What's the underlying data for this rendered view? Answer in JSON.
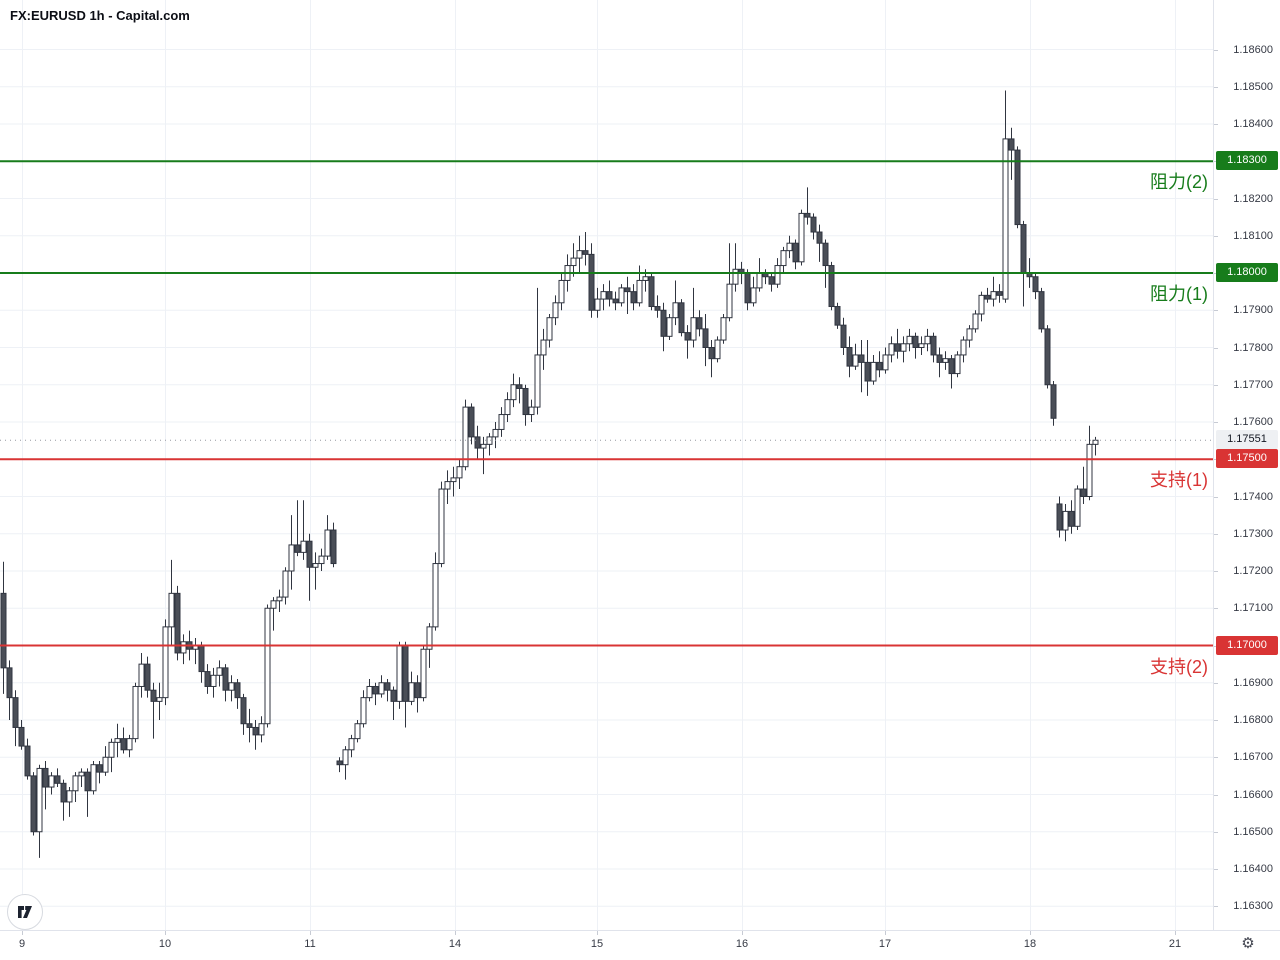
{
  "header": {
    "title": "FX:EURUSD 1h - Capital.com"
  },
  "icons": {
    "settings": "⚙",
    "watermark": "tradingview-logo"
  },
  "colors": {
    "background": "#ffffff",
    "grid": "#eef1f6",
    "axis_text": "#363a45",
    "candle_border": "#303540",
    "candle_up_fill": "#ffffff",
    "candle_down_fill": "#4a4e57",
    "resistance": "#177c1b",
    "support": "#d93434",
    "last_price_line": "#9598a1",
    "last_badge_bg": "#eef0f3"
  },
  "y_axis": {
    "labels": [
      "1.18600",
      "1.18500",
      "1.18400",
      "1.18300",
      "1.18200",
      "1.18100",
      "1.18000",
      "1.17900",
      "1.17800",
      "1.17700",
      "1.17600",
      "1.17500",
      "1.17400",
      "1.17300",
      "1.17200",
      "1.17100",
      "1.17000",
      "1.16900",
      "1.16800",
      "1.16700",
      "1.16600",
      "1.16500",
      "1.16400",
      "1.16300"
    ]
  },
  "x_axis": {
    "ticks": [
      {
        "text": "9",
        "x": 22
      },
      {
        "text": "10",
        "x": 165
      },
      {
        "text": "11",
        "x": 310
      },
      {
        "text": "14",
        "x": 455
      },
      {
        "text": "15",
        "x": 597
      },
      {
        "text": "16",
        "x": 742
      },
      {
        "text": "17",
        "x": 885
      },
      {
        "text": "18",
        "x": 1030
      },
      {
        "text": "21",
        "x": 1175
      }
    ]
  },
  "levels": [
    {
      "id": "resistance-2",
      "text": "阻力(2)",
      "badge": "1.18300",
      "price": 1.183,
      "color": "#177c1b"
    },
    {
      "id": "resistance-1",
      "text": "阻力(1)",
      "badge": "1.18000",
      "price": 1.18,
      "color": "#177c1b"
    },
    {
      "id": "support-1",
      "text": "支持(1)",
      "badge": "1.17500",
      "price": 1.175,
      "color": "#d93434"
    },
    {
      "id": "support-2",
      "text": "支持(2)",
      "badge": "1.17000",
      "price": 1.17,
      "color": "#d93434"
    }
  ],
  "last_price": {
    "badge": "1.17551",
    "price": 1.17551
  },
  "chart_data": {
    "type": "candlestick",
    "symbol": "FX:EURUSD",
    "interval": "1h",
    "source": "Capital.com",
    "title": "FX:EURUSD 1h - Capital.com",
    "y_range": [
      1.163,
      1.186
    ],
    "grid": true,
    "day_labels": [
      "9",
      "10",
      "11",
      "14",
      "15",
      "16",
      "17",
      "18",
      "21"
    ],
    "resistance_levels": [
      1.183,
      1.18
    ],
    "support_levels": [
      1.175,
      1.17
    ],
    "last_close": 1.17551,
    "bars": [
      [
        1.1714,
        1.17225,
        1.1687,
        1.1694
      ],
      [
        1.1694,
        1.1696,
        1.168,
        1.1686
      ],
      [
        1.1686,
        1.1688,
        1.1673,
        1.1678
      ],
      [
        1.1678,
        1.168,
        1.1672,
        1.1673
      ],
      [
        1.1673,
        1.1675,
        1.1664,
        1.1665
      ],
      [
        1.1665,
        1.1666,
        1.1649,
        1.165
      ],
      [
        1.165,
        1.1668,
        1.1643,
        1.1667
      ],
      [
        1.1667,
        1.1669,
        1.1656,
        1.1662
      ],
      [
        1.1662,
        1.1666,
        1.166,
        1.1665
      ],
      [
        1.1665,
        1.1667,
        1.1662,
        1.1663
      ],
      [
        1.1663,
        1.1664,
        1.1653,
        1.1658
      ],
      [
        1.1658,
        1.1662,
        1.1654,
        1.1661
      ],
      [
        1.1661,
        1.1666,
        1.1658,
        1.1665
      ],
      [
        1.1665,
        1.1667,
        1.1662,
        1.1666
      ],
      [
        1.1666,
        1.1667,
        1.1654,
        1.1661
      ],
      [
        1.1661,
        1.1669,
        1.166,
        1.1668
      ],
      [
        1.1668,
        1.1669,
        1.1663,
        1.1666
      ],
      [
        1.1666,
        1.1673,
        1.1665,
        1.167
      ],
      [
        1.167,
        1.1675,
        1.1666,
        1.1674
      ],
      [
        1.1674,
        1.1679,
        1.167,
        1.1675
      ],
      [
        1.1675,
        1.1678,
        1.1671,
        1.1672
      ],
      [
        1.1672,
        1.1676,
        1.167,
        1.1675
      ],
      [
        1.1675,
        1.169,
        1.1674,
        1.1689
      ],
      [
        1.1689,
        1.1698,
        1.1686,
        1.1695
      ],
      [
        1.1695,
        1.1697,
        1.1686,
        1.1688
      ],
      [
        1.1688,
        1.169,
        1.1675,
        1.1685
      ],
      [
        1.1685,
        1.169,
        1.168,
        1.1686
      ],
      [
        1.1686,
        1.1707,
        1.1684,
        1.1705
      ],
      [
        1.1705,
        1.1723,
        1.17,
        1.1714
      ],
      [
        1.1714,
        1.1716,
        1.1696,
        1.1698
      ],
      [
        1.1698,
        1.1703,
        1.1695,
        1.1701
      ],
      [
        1.1701,
        1.1704,
        1.1696,
        1.1699
      ],
      [
        1.1699,
        1.1702,
        1.1695,
        1.17
      ],
      [
        1.17,
        1.1701,
        1.169,
        1.1693
      ],
      [
        1.1693,
        1.1695,
        1.1687,
        1.1689
      ],
      [
        1.1689,
        1.1694,
        1.1686,
        1.1692
      ],
      [
        1.1692,
        1.1696,
        1.1689,
        1.1694
      ],
      [
        1.1694,
        1.1695,
        1.1685,
        1.1688
      ],
      [
        1.1688,
        1.1692,
        1.1685,
        1.169
      ],
      [
        1.169,
        1.1691,
        1.1683,
        1.1686
      ],
      [
        1.1686,
        1.1687,
        1.1676,
        1.1679
      ],
      [
        1.1679,
        1.1683,
        1.1674,
        1.1678
      ],
      [
        1.1678,
        1.168,
        1.1672,
        1.1676
      ],
      [
        1.1676,
        1.1681,
        1.1674,
        1.1679
      ],
      [
        1.1679,
        1.1711,
        1.1678,
        1.171
      ],
      [
        1.171,
        1.1713,
        1.1704,
        1.1712
      ],
      [
        1.1712,
        1.1715,
        1.1709,
        1.1713
      ],
      [
        1.1713,
        1.1721,
        1.1711,
        1.172
      ],
      [
        1.172,
        1.1735,
        1.1715,
        1.1727
      ],
      [
        1.1727,
        1.1739,
        1.1724,
        1.1725
      ],
      [
        1.1725,
        1.1739,
        1.1723,
        1.1728
      ],
      [
        1.1728,
        1.173,
        1.1712,
        1.1721
      ],
      [
        1.1721,
        1.1725,
        1.1715,
        1.1722
      ],
      [
        1.1722,
        1.1726,
        1.172,
        1.1724
      ],
      [
        1.1724,
        1.1735,
        1.1723,
        1.1731
      ],
      [
        1.1731,
        1.1733,
        1.1721,
        1.1722
      ],
      [
        1.1669,
        1.167,
        1.1666,
        1.1668
      ],
      [
        1.1668,
        1.1673,
        1.1664,
        1.1672
      ],
      [
        1.1672,
        1.1676,
        1.167,
        1.1675
      ],
      [
        1.1675,
        1.168,
        1.1674,
        1.1679
      ],
      [
        1.1679,
        1.1688,
        1.1678,
        1.1686
      ],
      [
        1.1686,
        1.1691,
        1.1685,
        1.1689
      ],
      [
        1.1689,
        1.169,
        1.1684,
        1.1687
      ],
      [
        1.1687,
        1.1692,
        1.1686,
        1.169
      ],
      [
        1.169,
        1.1691,
        1.1685,
        1.1688
      ],
      [
        1.1688,
        1.1689,
        1.168,
        1.1685
      ],
      [
        1.1685,
        1.1701,
        1.1683,
        1.17
      ],
      [
        1.17,
        1.1701,
        1.1678,
        1.1685
      ],
      [
        1.1685,
        1.1693,
        1.1684,
        1.169
      ],
      [
        1.169,
        1.1692,
        1.1682,
        1.1686
      ],
      [
        1.1686,
        1.17,
        1.1685,
        1.1699
      ],
      [
        1.1699,
        1.1706,
        1.1694,
        1.1705
      ],
      [
        1.1705,
        1.1725,
        1.1704,
        1.1722
      ],
      [
        1.1722,
        1.1744,
        1.1721,
        1.1742
      ],
      [
        1.1742,
        1.1747,
        1.1738,
        1.1744
      ],
      [
        1.1744,
        1.1748,
        1.174,
        1.1745
      ],
      [
        1.1745,
        1.175,
        1.1742,
        1.1748
      ],
      [
        1.1748,
        1.1766,
        1.1747,
        1.1764
      ],
      [
        1.1764,
        1.1765,
        1.1754,
        1.1756
      ],
      [
        1.1756,
        1.1759,
        1.175,
        1.1753
      ],
      [
        1.1753,
        1.1756,
        1.1746,
        1.1754
      ],
      [
        1.1754,
        1.1757,
        1.1751,
        1.1756
      ],
      [
        1.1756,
        1.176,
        1.1753,
        1.1758
      ],
      [
        1.1758,
        1.1764,
        1.1756,
        1.1762
      ],
      [
        1.1762,
        1.1768,
        1.176,
        1.1766
      ],
      [
        1.1766,
        1.1773,
        1.1764,
        1.177
      ],
      [
        1.177,
        1.1772,
        1.1765,
        1.1769
      ],
      [
        1.1769,
        1.177,
        1.1759,
        1.1762
      ],
      [
        1.1762,
        1.1766,
        1.176,
        1.1764
      ],
      [
        1.1764,
        1.1796,
        1.1762,
        1.1778
      ],
      [
        1.1778,
        1.1785,
        1.1774,
        1.1782
      ],
      [
        1.1782,
        1.1789,
        1.178,
        1.1788
      ],
      [
        1.1788,
        1.1794,
        1.1786,
        1.1792
      ],
      [
        1.1792,
        1.18,
        1.179,
        1.1798
      ],
      [
        1.1798,
        1.1805,
        1.1795,
        1.1802
      ],
      [
        1.1802,
        1.1808,
        1.1799,
        1.1804
      ],
      [
        1.1804,
        1.181,
        1.18,
        1.1806
      ],
      [
        1.1806,
        1.1811,
        1.1802,
        1.1805
      ],
      [
        1.1805,
        1.1808,
        1.1788,
        1.179
      ],
      [
        1.179,
        1.1796,
        1.1788,
        1.1793
      ],
      [
        1.1793,
        1.1797,
        1.179,
        1.1795
      ],
      [
        1.1795,
        1.1798,
        1.1791,
        1.1793
      ],
      [
        1.1793,
        1.1795,
        1.179,
        1.1792
      ],
      [
        1.1792,
        1.1797,
        1.1791,
        1.1796
      ],
      [
        1.1796,
        1.1799,
        1.1789,
        1.1795
      ],
      [
        1.1795,
        1.1797,
        1.179,
        1.1792
      ],
      [
        1.1792,
        1.1802,
        1.1791,
        1.1798
      ],
      [
        1.1798,
        1.1801,
        1.1795,
        1.1799
      ],
      [
        1.1799,
        1.18,
        1.179,
        1.1791
      ],
      [
        1.1791,
        1.1794,
        1.1788,
        1.179
      ],
      [
        1.179,
        1.1792,
        1.1779,
        1.1783
      ],
      [
        1.1783,
        1.1789,
        1.1782,
        1.1788
      ],
      [
        1.1788,
        1.1798,
        1.1786,
        1.1792
      ],
      [
        1.1792,
        1.1793,
        1.1783,
        1.1784
      ],
      [
        1.1784,
        1.1786,
        1.1777,
        1.1782
      ],
      [
        1.1782,
        1.1796,
        1.178,
        1.1788
      ],
      [
        1.1788,
        1.179,
        1.1783,
        1.1785
      ],
      [
        1.1785,
        1.1789,
        1.1775,
        1.178
      ],
      [
        1.178,
        1.1782,
        1.1772,
        1.1777
      ],
      [
        1.1777,
        1.1783,
        1.1776,
        1.1782
      ],
      [
        1.1782,
        1.1789,
        1.1781,
        1.1788
      ],
      [
        1.1788,
        1.1808,
        1.1787,
        1.1797
      ],
      [
        1.1797,
        1.1808,
        1.1795,
        1.1801
      ],
      [
        1.1801,
        1.1803,
        1.1797,
        1.18
      ],
      [
        1.18,
        1.1801,
        1.179,
        1.1792
      ],
      [
        1.1792,
        1.1799,
        1.1791,
        1.1796
      ],
      [
        1.1796,
        1.1804,
        1.1795,
        1.18
      ],
      [
        1.18,
        1.1801,
        1.1797,
        1.1799
      ],
      [
        1.1799,
        1.18,
        1.1795,
        1.1797
      ],
      [
        1.1797,
        1.1804,
        1.1796,
        1.1802
      ],
      [
        1.1802,
        1.1807,
        1.18,
        1.1806
      ],
      [
        1.1806,
        1.181,
        1.1804,
        1.1808
      ],
      [
        1.1808,
        1.1809,
        1.1801,
        1.1803
      ],
      [
        1.1803,
        1.1817,
        1.1802,
        1.1816
      ],
      [
        1.1816,
        1.1823,
        1.1813,
        1.1815
      ],
      [
        1.1815,
        1.1816,
        1.1809,
        1.1811
      ],
      [
        1.1811,
        1.1813,
        1.1803,
        1.1808
      ],
      [
        1.1808,
        1.1809,
        1.1796,
        1.1802
      ],
      [
        1.1802,
        1.1803,
        1.179,
        1.1791
      ],
      [
        1.1791,
        1.1792,
        1.1785,
        1.1786
      ],
      [
        1.1786,
        1.1788,
        1.1778,
        1.178
      ],
      [
        1.178,
        1.1783,
        1.1772,
        1.1775
      ],
      [
        1.1775,
        1.1781,
        1.1774,
        1.1778
      ],
      [
        1.1778,
        1.1782,
        1.1768,
        1.1776
      ],
      [
        1.1776,
        1.1782,
        1.1767,
        1.1771
      ],
      [
        1.1771,
        1.1778,
        1.177,
        1.1776
      ],
      [
        1.1776,
        1.1779,
        1.1772,
        1.1774
      ],
      [
        1.1774,
        1.178,
        1.1773,
        1.1778
      ],
      [
        1.1778,
        1.1783,
        1.1776,
        1.1781
      ],
      [
        1.1781,
        1.1785,
        1.1777,
        1.1779
      ],
      [
        1.1779,
        1.1783,
        1.1776,
        1.1781
      ],
      [
        1.1781,
        1.1785,
        1.1779,
        1.1783
      ],
      [
        1.1783,
        1.1784,
        1.1777,
        1.178
      ],
      [
        1.178,
        1.1783,
        1.1778,
        1.1781
      ],
      [
        1.1781,
        1.1785,
        1.1779,
        1.1783
      ],
      [
        1.1783,
        1.1784,
        1.1776,
        1.1778
      ],
      [
        1.1778,
        1.178,
        1.1772,
        1.1776
      ],
      [
        1.1776,
        1.1779,
        1.1774,
        1.1777
      ],
      [
        1.1777,
        1.1778,
        1.1769,
        1.1773
      ],
      [
        1.1773,
        1.1779,
        1.1772,
        1.1778
      ],
      [
        1.1778,
        1.1783,
        1.1776,
        1.1782
      ],
      [
        1.1782,
        1.1786,
        1.178,
        1.1785
      ],
      [
        1.1785,
        1.179,
        1.1784,
        1.1789
      ],
      [
        1.1789,
        1.1795,
        1.1787,
        1.1794
      ],
      [
        1.1794,
        1.1796,
        1.1792,
        1.1793
      ],
      [
        1.1793,
        1.1799,
        1.1791,
        1.1795
      ],
      [
        1.1795,
        1.1797,
        1.1792,
        1.1794
      ],
      [
        1.1793,
        1.1849,
        1.1792,
        1.1836
      ],
      [
        1.1836,
        1.1839,
        1.1825,
        1.1833
      ],
      [
        1.1833,
        1.1834,
        1.1812,
        1.1813
      ],
      [
        1.1813,
        1.1814,
        1.1791,
        1.18
      ],
      [
        1.18,
        1.1804,
        1.1796,
        1.1799
      ],
      [
        1.1799,
        1.18,
        1.1793,
        1.1795
      ],
      [
        1.1795,
        1.1796,
        1.1784,
        1.1785
      ],
      [
        1.1785,
        1.1786,
        1.1769,
        1.177
      ],
      [
        1.177,
        1.1771,
        1.1759,
        1.1761
      ],
      [
        1.1738,
        1.174,
        1.1729,
        1.1731
      ],
      [
        1.1731,
        1.1738,
        1.1728,
        1.1736
      ],
      [
        1.1736,
        1.1739,
        1.173,
        1.1732
      ],
      [
        1.1732,
        1.1743,
        1.1731,
        1.1742
      ],
      [
        1.1742,
        1.1748,
        1.1738,
        1.174
      ],
      [
        1.174,
        1.1759,
        1.1739,
        1.1754
      ],
      [
        1.1754,
        1.1756,
        1.1751,
        1.17551
      ]
    ]
  }
}
